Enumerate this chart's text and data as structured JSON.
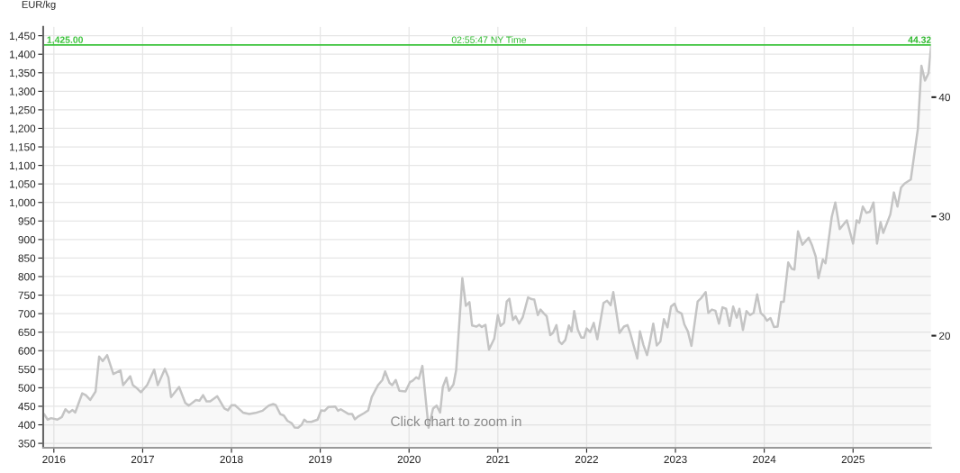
{
  "chart_data": {
    "type": "area",
    "ylabel": "EUR/kg",
    "x": [
      2015.89,
      2015.93,
      2015.97,
      2016.04,
      2016.09,
      2016.13,
      2016.17,
      2016.21,
      2016.24,
      2016.32,
      2016.36,
      2016.41,
      2016.47,
      2016.51,
      2016.55,
      2016.6,
      2016.67,
      2016.75,
      2016.78,
      2016.86,
      2016.89,
      2016.93,
      2016.98,
      2017.05,
      2017.13,
      2017.17,
      2017.25,
      2017.29,
      2017.32,
      2017.41,
      2017.48,
      2017.52,
      2017.6,
      2017.64,
      2017.68,
      2017.72,
      2017.76,
      2017.84,
      2017.92,
      2017.96,
      2018.0,
      2018.04,
      2018.08,
      2018.13,
      2018.2,
      2018.27,
      2018.35,
      2018.42,
      2018.47,
      2018.5,
      2018.55,
      2018.59,
      2018.63,
      2018.68,
      2018.71,
      2018.75,
      2018.79,
      2018.82,
      2018.85,
      2018.9,
      2018.97,
      2019.01,
      2019.05,
      2019.09,
      2019.17,
      2019.2,
      2019.23,
      2019.32,
      2019.36,
      2019.39,
      2019.43,
      2019.49,
      2019.54,
      2019.58,
      2019.65,
      2019.7,
      2019.73,
      2019.78,
      2019.81,
      2019.85,
      2019.89,
      2019.96,
      2020.01,
      2020.04,
      2020.08,
      2020.11,
      2020.15,
      2020.22,
      2020.27,
      2020.31,
      2020.35,
      2020.38,
      2020.42,
      2020.45,
      2020.5,
      2020.53,
      2020.6,
      2020.64,
      2020.68,
      2020.71,
      2020.76,
      2020.79,
      2020.82,
      2020.86,
      2020.9,
      2020.96,
      2021.0,
      2021.03,
      2021.07,
      2021.1,
      2021.13,
      2021.17,
      2021.2,
      2021.24,
      2021.28,
      2021.34,
      2021.38,
      2021.41,
      2021.45,
      2021.48,
      2021.52,
      2021.55,
      2021.59,
      2021.62,
      2021.66,
      2021.69,
      2021.72,
      2021.76,
      2021.8,
      2021.83,
      2021.86,
      2021.9,
      2021.94,
      2021.97,
      2022.0,
      2022.04,
      2022.08,
      2022.12,
      2022.15,
      2022.19,
      2022.23,
      2022.27,
      2022.3,
      2022.37,
      2022.42,
      2022.46,
      2022.49,
      2022.53,
      2022.57,
      2022.6,
      2022.64,
      2022.68,
      2022.71,
      2022.75,
      2022.79,
      2022.83,
      2022.87,
      2022.91,
      2022.95,
      2022.99,
      2023.02,
      2023.07,
      2023.1,
      2023.14,
      2023.18,
      2023.25,
      2023.29,
      2023.34,
      2023.37,
      2023.41,
      2023.45,
      2023.49,
      2023.53,
      2023.57,
      2023.61,
      2023.65,
      2023.69,
      2023.72,
      2023.76,
      2023.8,
      2023.84,
      2023.88,
      2023.92,
      2023.96,
      2024.0,
      2024.03,
      2024.07,
      2024.11,
      2024.15,
      2024.19,
      2024.22,
      2024.27,
      2024.31,
      2024.34,
      2024.38,
      2024.43,
      2024.5,
      2024.54,
      2024.58,
      2024.61,
      2024.66,
      2024.69,
      2024.76,
      2024.8,
      2024.85,
      2024.93,
      2025.0,
      2025.04,
      2025.07,
      2025.11,
      2025.15,
      2025.19,
      2025.23,
      2025.27,
      2025.31,
      2025.34,
      2025.42,
      2025.46,
      2025.5,
      2025.54,
      2025.58,
      2025.65,
      2025.73,
      2025.77,
      2025.81,
      2025.85,
      2025.88
    ],
    "series": [
      {
        "color": "#c4c4c4",
        "values": [
          429,
          414,
          418,
          414,
          421,
          442,
          433,
          440,
          433,
          485,
          480,
          467,
          490,
          584,
          572,
          588,
          537,
          547,
          507,
          531,
          507,
          500,
          488,
          507,
          549,
          507,
          551,
          528,
          475,
          502,
          459,
          452,
          467,
          465,
          480,
          463,
          463,
          477,
          444,
          439,
          453,
          453,
          444,
          433,
          429,
          432,
          438,
          452,
          456,
          453,
          429,
          425,
          411,
          404,
          393,
          392,
          400,
          414,
          408,
          408,
          414,
          439,
          438,
          448,
          449,
          438,
          442,
          429,
          429,
          415,
          423,
          431,
          439,
          475,
          507,
          521,
          544,
          513,
          507,
          521,
          492,
          490,
          515,
          519,
          528,
          524,
          559,
          392,
          444,
          452,
          433,
          502,
          527,
          492,
          509,
          547,
          796,
          721,
          731,
          668,
          665,
          670,
          664,
          670,
          603,
          633,
          696,
          667,
          675,
          733,
          740,
          683,
          693,
          673,
          690,
          744,
          739,
          738,
          696,
          711,
          700,
          693,
          642,
          648,
          669,
          625,
          618,
          629,
          668,
          652,
          707,
          657,
          635,
          635,
          660,
          650,
          675,
          631,
          673,
          729,
          735,
          723,
          758,
          648,
          665,
          669,
          648,
          613,
          579,
          652,
          615,
          588,
          621,
          673,
          614,
          625,
          685,
          663,
          719,
          727,
          707,
          700,
          671,
          652,
          613,
          733,
          742,
          758,
          702,
          711,
          708,
          673,
          717,
          713,
          667,
          719,
          689,
          713,
          656,
          707,
          696,
          702,
          752,
          702,
          693,
          681,
          688,
          664,
          665,
          732,
          732,
          838,
          821,
          819,
          922,
          886,
          905,
          883,
          854,
          796,
          846,
          836,
          961,
          1000,
          928,
          952,
          889,
          952,
          945,
          989,
          972,
          975,
          1000,
          889,
          947,
          918,
          968,
          1027,
          989,
          1040,
          1051,
          1062,
          1199,
          1369,
          1329,
          1349,
          1425
        ]
      }
    ],
    "xlim": [
      2015.88,
      2025.88
    ],
    "xticks": [
      2016,
      2017,
      2018,
      2019,
      2020,
      2021,
      2022,
      2023,
      2024,
      2025
    ],
    "ylim": [
      338,
      1474
    ],
    "yticks": [
      350,
      400,
      450,
      500,
      550,
      600,
      650,
      700,
      750,
      800,
      850,
      900,
      950,
      {
        "value": 1000,
        "label": "1,000"
      },
      {
        "value": 1050,
        "label": "1,050"
      },
      {
        "value": 1100,
        "label": "1,100"
      },
      {
        "value": 1150,
        "label": "1,150"
      },
      {
        "value": 1200,
        "label": "1,200"
      },
      {
        "value": 1250,
        "label": "1,250"
      },
      {
        "value": 1300,
        "label": "1,300"
      },
      {
        "value": 1350,
        "label": "1,350"
      },
      {
        "value": 1400,
        "label": "1,400"
      },
      {
        "value": 1450,
        "label": "1,450"
      }
    ],
    "y2lim": [
      10.6,
      45.9
    ],
    "y2ticks": [
      20,
      30,
      40
    ],
    "grid": true,
    "ref_lines": [
      {
        "axis": "y",
        "value": 1425,
        "label": "1,425.00",
        "color": "#3ec43e"
      }
    ],
    "annotations": [
      {
        "text": "02:55:47 NY Time",
        "x": 2020.9,
        "y": 1425
      },
      {
        "text": "44.32",
        "x": 2025.75,
        "y": 1425
      },
      "Click chart to zoom in"
    ]
  }
}
